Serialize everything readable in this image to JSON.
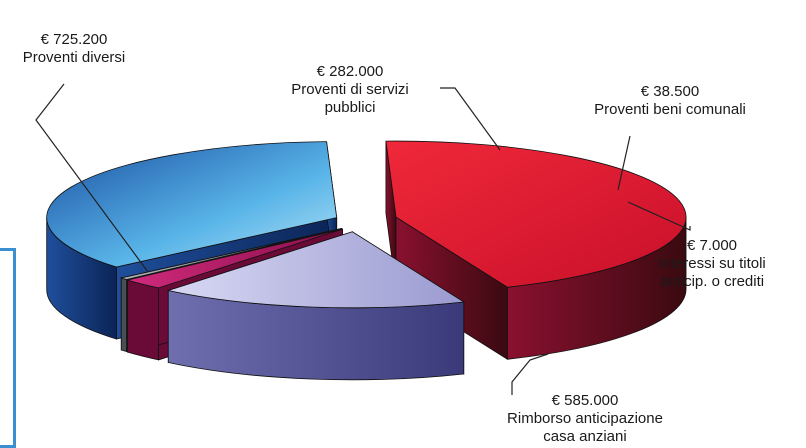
{
  "chart_data": {
    "type": "pie",
    "style": "3d-exploded",
    "currency": "€",
    "slices": [
      {
        "name": "Proventi diversi",
        "value": 725200,
        "value_label": "€ 725.200",
        "label_lines": [
          "Proventi diversi"
        ],
        "color": "#e8192c"
      },
      {
        "name": "Proventi di servizi pubblici",
        "value": 282000,
        "value_label": "€ 282.000",
        "label_lines": [
          "Proventi di servizi",
          "pubblici"
        ],
        "color": "#c9c9ec"
      },
      {
        "name": "Proventi beni comunali",
        "value": 38500,
        "value_label": "€ 38.500",
        "label_lines": [
          "Proventi beni comunali"
        ],
        "color": "#c21a6e"
      },
      {
        "name": "Interessi su titoli anticip. o crediti",
        "value": 7000,
        "value_label": "€ 7.000",
        "label_lines": [
          "Interessi su titoli",
          "anticip. o crediti"
        ],
        "color": "#9aa0a8"
      },
      {
        "name": "Rimborso anticipazione casa anziani",
        "value": 585000,
        "value_label": "€ 585.000",
        "label_lines": [
          "Rimborso anticipazione",
          "casa anziani"
        ],
        "color": "#4aa8e0"
      }
    ]
  }
}
